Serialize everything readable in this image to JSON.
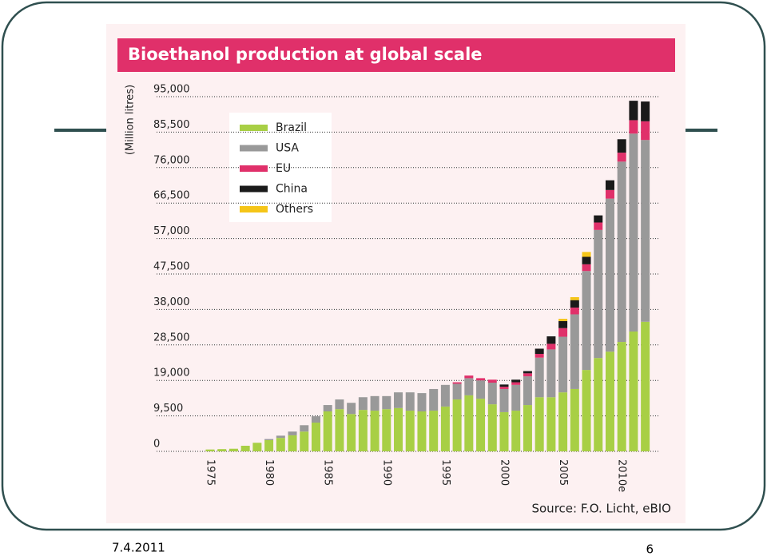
{
  "chart_data": {
    "type": "stacked-bar",
    "title": "Bioethanol production at global scale",
    "ylabel": "(Million litres)",
    "source": "Source: F.O. Licht, eBIO",
    "categories": [
      "1975",
      null,
      null,
      null,
      null,
      "1980",
      null,
      null,
      null,
      null,
      "1985",
      null,
      null,
      null,
      null,
      "1990",
      null,
      null,
      null,
      null,
      "1995",
      null,
      null,
      null,
      null,
      "2000",
      null,
      null,
      null,
      null,
      "2005",
      null,
      null,
      null,
      null,
      "2010e",
      null,
      null
    ],
    "series": [
      {
        "name": "Brazil",
        "color": "#a8cf45",
        "values": [
          500,
          600,
          700,
          1500,
          2300,
          3000,
          3600,
          4300,
          5300,
          7700,
          10700,
          11300,
          10000,
          11100,
          10900,
          11300,
          11600,
          10900,
          10700,
          10900,
          12000,
          13900,
          15000,
          14100,
          12600,
          10500,
          10900,
          12400,
          14500,
          14500,
          15800,
          16700,
          21800,
          25000,
          26700,
          29300,
          32100,
          34700
        ]
      },
      {
        "name": "USA",
        "color": "#999999",
        "values": [
          0,
          0,
          0,
          0,
          0,
          300,
          600,
          1000,
          1700,
          1700,
          1700,
          2600,
          3000,
          3400,
          3900,
          3500,
          4200,
          4900,
          4900,
          5800,
          5800,
          4200,
          4600,
          4900,
          5800,
          6200,
          6900,
          7700,
          10600,
          12800,
          14900,
          20000,
          26500,
          34300,
          41000,
          48300,
          53000,
          48700
        ]
      },
      {
        "name": "EU",
        "color": "#e0306a",
        "values": [
          0,
          0,
          0,
          0,
          0,
          0,
          0,
          0,
          0,
          0,
          0,
          0,
          0,
          0,
          0,
          0,
          0,
          0,
          0,
          0,
          0,
          400,
          700,
          600,
          800,
          600,
          700,
          800,
          1000,
          1500,
          2300,
          1800,
          1800,
          2000,
          2300,
          2400,
          3600,
          5000
        ]
      },
      {
        "name": "China",
        "color": "#1a1a1a",
        "values": [
          0,
          0,
          0,
          0,
          0,
          0,
          0,
          0,
          0,
          0,
          0,
          0,
          0,
          0,
          0,
          0,
          0,
          0,
          0,
          0,
          0,
          0,
          0,
          0,
          0,
          600,
          700,
          600,
          1400,
          2000,
          1900,
          2000,
          2000,
          1900,
          2600,
          3600,
          5200,
          5300
        ]
      },
      {
        "name": "Others",
        "color": "#f5c518",
        "values": [
          0,
          0,
          0,
          0,
          0,
          0,
          0,
          0,
          0,
          0,
          0,
          0,
          0,
          0,
          0,
          0,
          0,
          0,
          0,
          0,
          0,
          0,
          0,
          0,
          0,
          0,
          0,
          0,
          0,
          0,
          600,
          800,
          1300,
          0,
          0,
          0,
          0,
          0
        ]
      }
    ],
    "ylim": [
      0,
      95000
    ],
    "yticks": [
      0,
      {
        "value": 9500,
        "label": "9,500"
      },
      {
        "value": 19000,
        "label": "19,000"
      },
      {
        "value": 28500,
        "label": "28,500"
      },
      {
        "value": 38000,
        "label": "38,000"
      },
      {
        "value": 47500,
        "label": "47,500"
      },
      {
        "value": 57000,
        "label": "57,000"
      },
      {
        "value": 66500,
        "label": "66,500"
      },
      {
        "value": 76000,
        "label": "76,000"
      },
      {
        "value": 85500,
        "label": "85,500"
      },
      {
        "value": 95000,
        "label": "95,000"
      }
    ],
    "grid": true
  },
  "footer": {
    "date": "7.4.2011",
    "page": "6"
  }
}
